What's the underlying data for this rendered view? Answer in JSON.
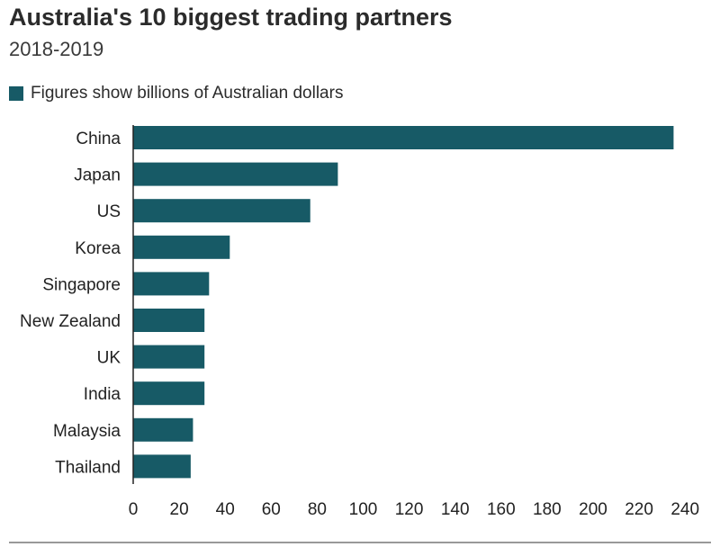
{
  "chart_data": {
    "type": "bar",
    "orientation": "horizontal",
    "title": "Australia's 10 biggest trading partners",
    "subtitle": "2018-2019",
    "legend": "Figures show billions of Australian dollars",
    "legend_placement": "top-left",
    "categories": [
      "China",
      "Japan",
      "US",
      "Korea",
      "Singapore",
      "New Zealand",
      "UK",
      "India",
      "Malaysia",
      "Thailand"
    ],
    "values": [
      235,
      89,
      77,
      42,
      33,
      31,
      31,
      31,
      26,
      25
    ],
    "xlim": [
      0,
      240
    ],
    "xticks": [
      0,
      20,
      40,
      60,
      80,
      100,
      120,
      140,
      160,
      180,
      200,
      220,
      240
    ],
    "grid": false,
    "color": "#175a66"
  }
}
